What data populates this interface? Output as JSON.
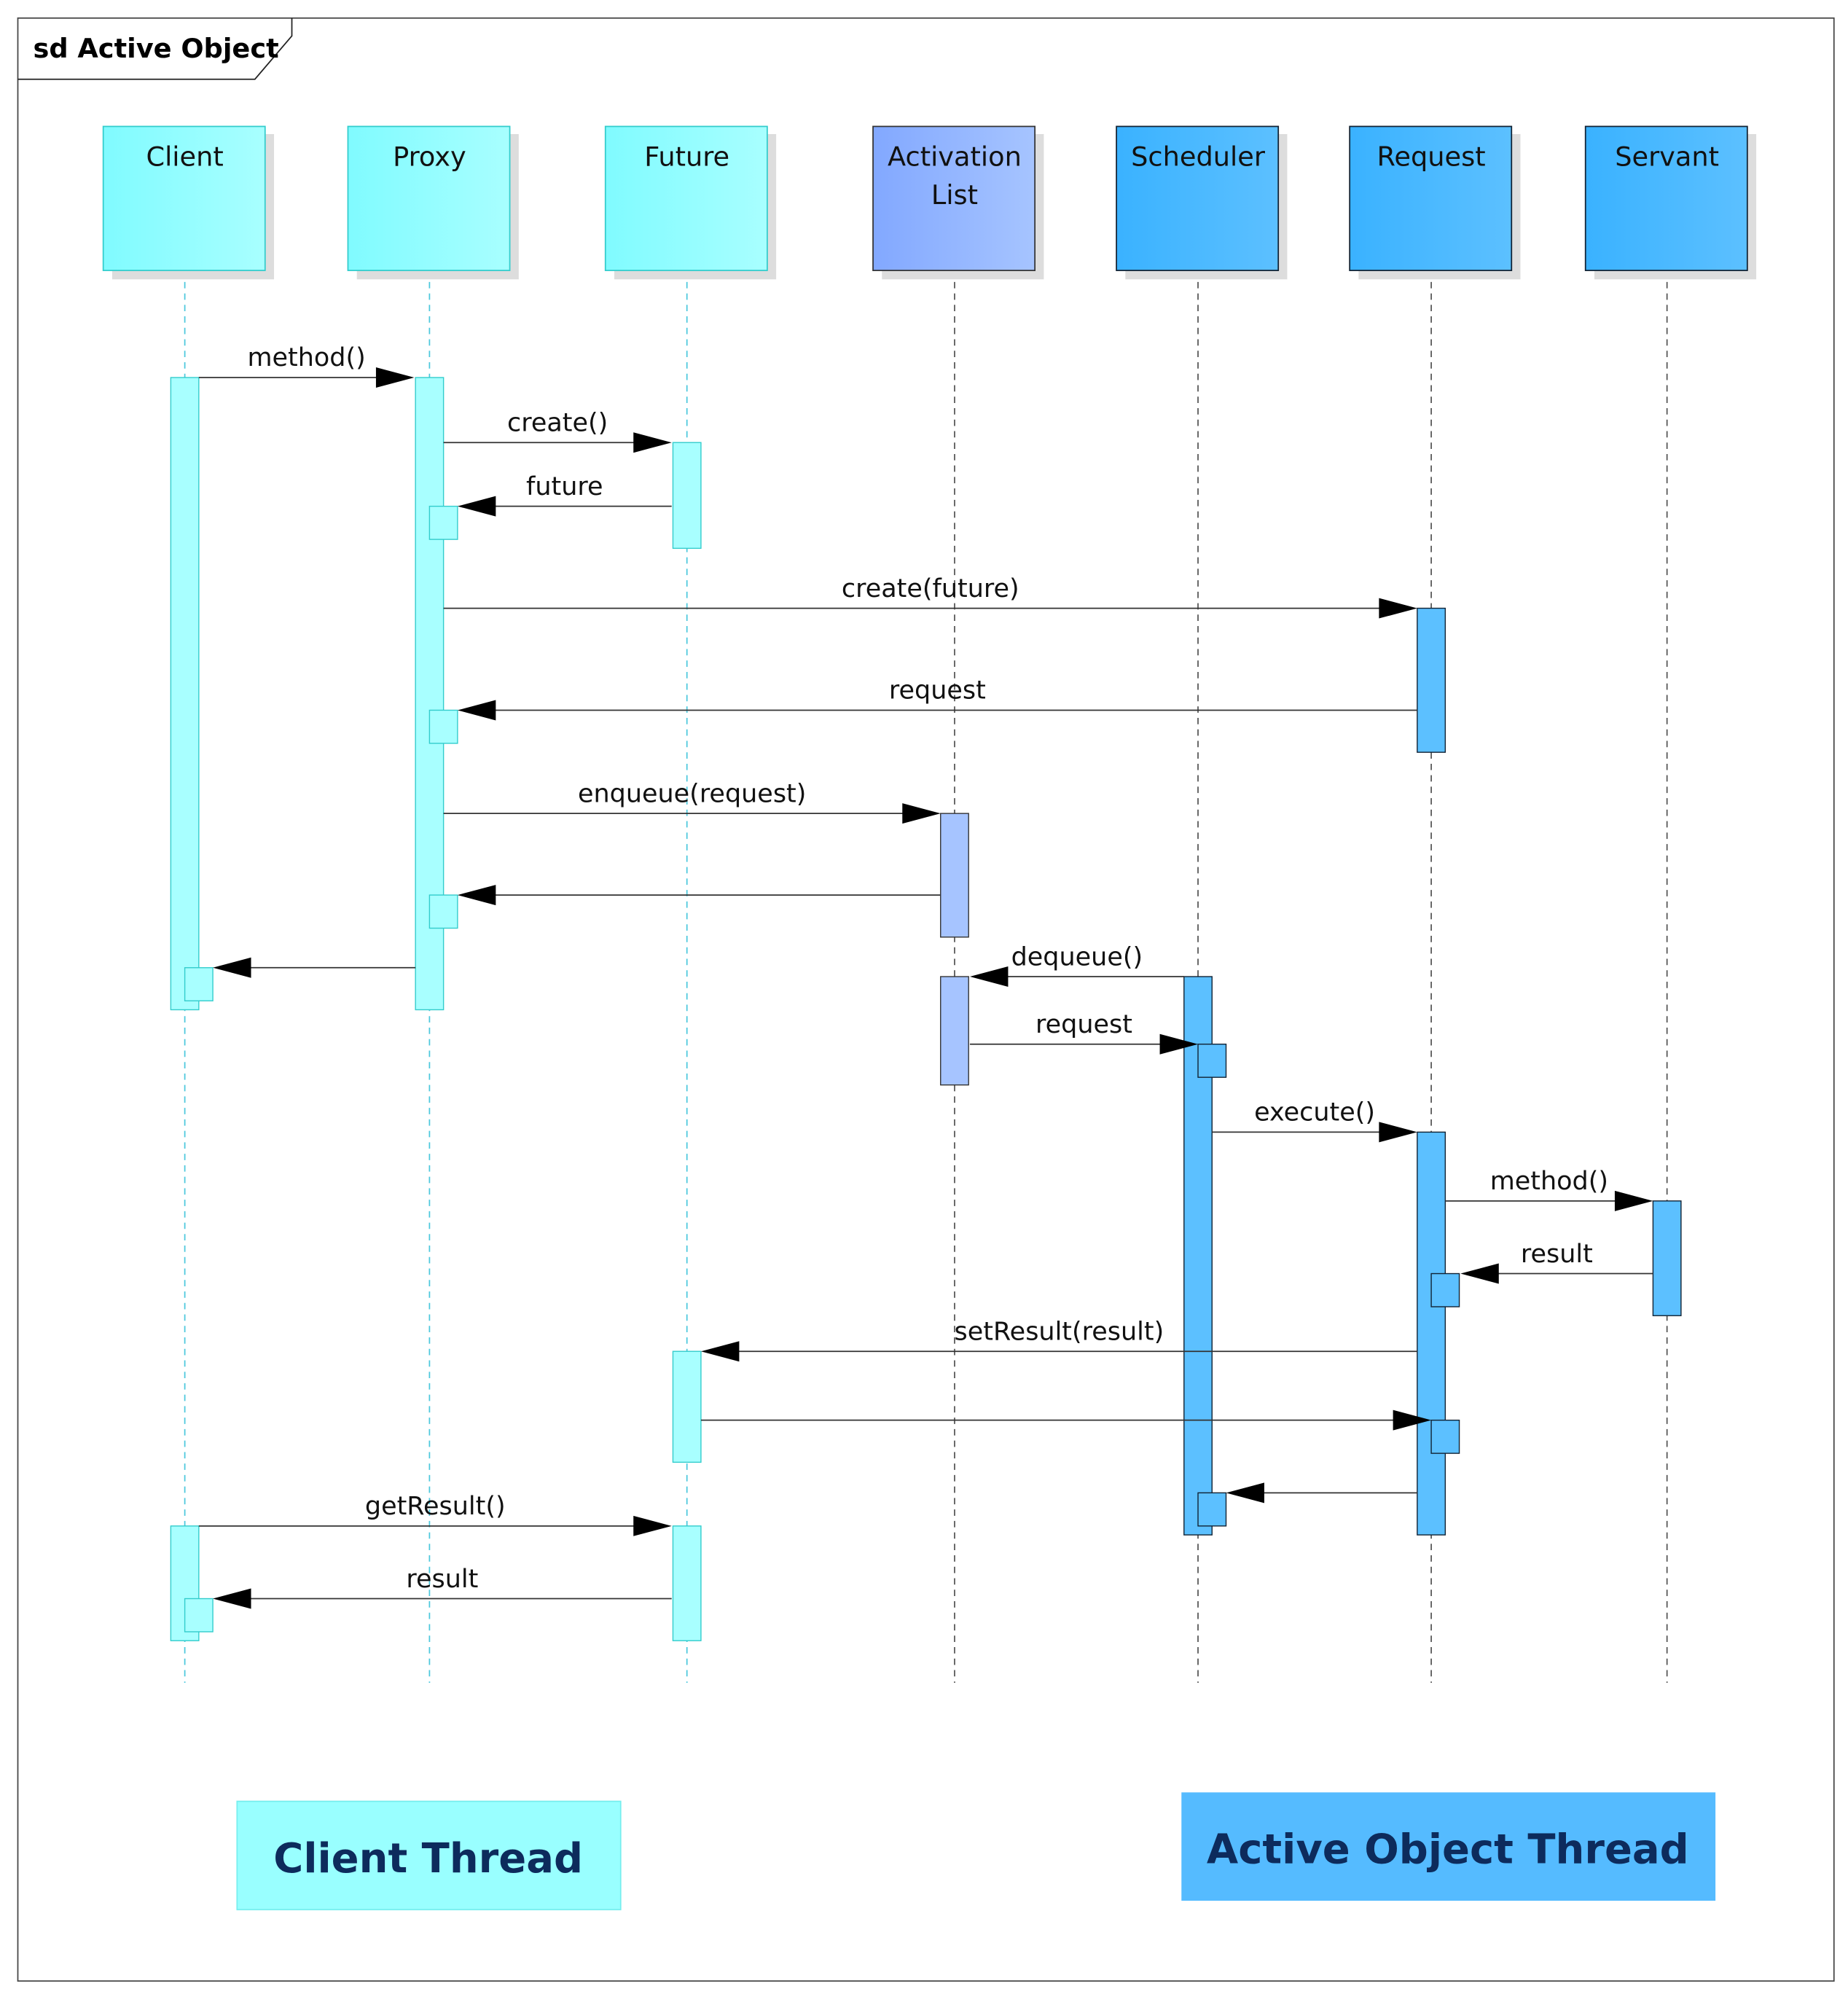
{
  "frame": {
    "title": "sd Active Object"
  },
  "participants": [
    {
      "name": "Client",
      "lines": [
        "Client"
      ],
      "group": "client"
    },
    {
      "name": "Proxy",
      "lines": [
        "Proxy"
      ],
      "group": "client"
    },
    {
      "name": "Future",
      "lines": [
        "Future"
      ],
      "group": "client"
    },
    {
      "name": "Activation List",
      "lines": [
        "Activation",
        "List"
      ],
      "group": "list"
    },
    {
      "name": "Scheduler",
      "lines": [
        "Scheduler"
      ],
      "group": "active"
    },
    {
      "name": "Request",
      "lines": [
        "Request"
      ],
      "group": "active"
    },
    {
      "name": "Servant",
      "lines": [
        "Servant"
      ],
      "group": "active"
    }
  ],
  "messages": [
    {
      "label": "method()",
      "from": "Client",
      "to": "Proxy"
    },
    {
      "label": "create()",
      "from": "Proxy",
      "to": "Future"
    },
    {
      "label": "future",
      "from": "Future",
      "to": "Proxy"
    },
    {
      "label": "create(future)",
      "from": "Proxy",
      "to": "Request"
    },
    {
      "label": "request",
      "from": "Request",
      "to": "Proxy"
    },
    {
      "label": "enqueue(request)",
      "from": "Proxy",
      "to": "Activation List"
    },
    {
      "label": "",
      "from": "Activation List",
      "to": "Proxy"
    },
    {
      "label": "",
      "from": "Proxy",
      "to": "Client"
    },
    {
      "label": "dequeue()",
      "from": "Scheduler",
      "to": "Activation List"
    },
    {
      "label": "request",
      "from": "Activation List",
      "to": "Scheduler"
    },
    {
      "label": "execute()",
      "from": "Scheduler",
      "to": "Request"
    },
    {
      "label": "method()",
      "from": "Request",
      "to": "Servant"
    },
    {
      "label": "result",
      "from": "Servant",
      "to": "Request"
    },
    {
      "label": "setResult(result)",
      "from": "Request",
      "to": "Future"
    },
    {
      "label": "",
      "from": "Future",
      "to": "Request"
    },
    {
      "label": "",
      "from": "Request",
      "to": "Scheduler"
    },
    {
      "label": "getResult()",
      "from": "Client",
      "to": "Future"
    },
    {
      "label": "result",
      "from": "Future",
      "to": "Client"
    }
  ],
  "legend": {
    "client_thread": "Client Thread",
    "active_thread": "Active Object Thread"
  },
  "colors": {
    "client_light": "#a8ffff",
    "client_dark": "#80fbff",
    "list_light": "#a6c4ff",
    "list_dark": "#82a8ff",
    "active_light": "#5cc0ff",
    "active_dark": "#3ab2ff",
    "client_thread_fill": "#99ffff",
    "active_thread_fill": "#55bbff",
    "legend_text": "#0d2b5c"
  }
}
